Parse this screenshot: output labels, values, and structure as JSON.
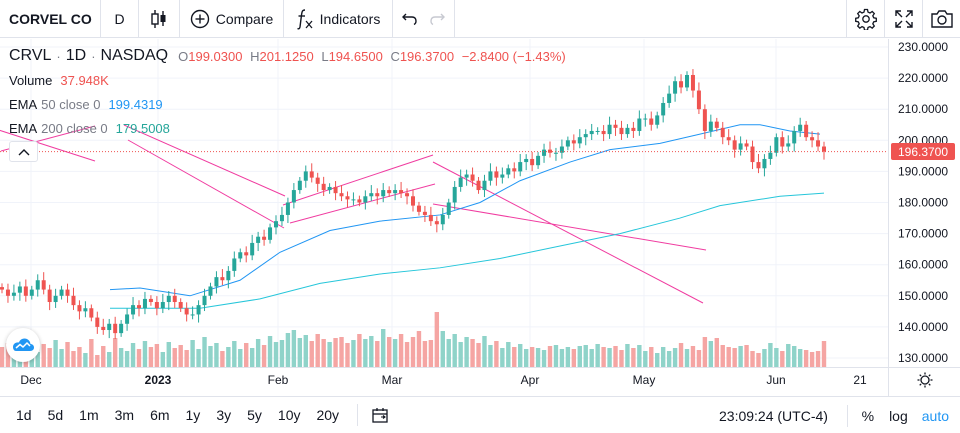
{
  "toolbar": {
    "symbol": "CORVEL CO",
    "interval": "D",
    "compare_label": "Compare",
    "indicators_label": "Indicators",
    "icons": [
      "candles-icon",
      "plus-circle-icon",
      "fx-icon",
      "undo-icon",
      "redo-icon",
      "gear-icon",
      "fullscreen-icon",
      "camera-icon"
    ]
  },
  "legend": {
    "ticker": "CRVL",
    "interval": "1D",
    "exchange": "NASDAQ",
    "open_label": "O",
    "open": "199.0300",
    "high_label": "H",
    "high": "201.1250",
    "low_label": "L",
    "low": "194.6500",
    "close_label": "C",
    "close": "196.3700",
    "change": "−2.8400 (−1.43%)",
    "volume_name": "Volume",
    "volume_value": "37.948K",
    "ema50_name": "EMA",
    "ema50_params": "50 close 0",
    "ema50_value": "199.4319",
    "ema200_name": "EMA",
    "ema200_params": "200 close 0",
    "ema200_value": "179.5008"
  },
  "price_tag": "196.3700",
  "colors": {
    "up": "#26a69a",
    "down": "#ef5350",
    "vol_up": "#8fd3c9",
    "vol_down": "#f5a5a3",
    "ema50": "#2196f3",
    "ema200": "#26c6da",
    "trendline": "#f03ca0"
  },
  "chart_data": {
    "type": "candlestick",
    "price_axis": [
      "230.0000",
      "220.0000",
      "210.0000",
      "200.0000",
      "190.0000",
      "180.0000",
      "170.0000",
      "160.0000",
      "150.0000",
      "140.0000",
      "130.0000"
    ],
    "ylim": [
      127,
      233
    ],
    "time_axis": [
      {
        "label": "Dec",
        "bold": false
      },
      {
        "label": "2023",
        "bold": true
      },
      {
        "label": "Feb",
        "bold": false
      },
      {
        "label": "Mar",
        "bold": false
      },
      {
        "label": "Apr",
        "bold": false
      },
      {
        "label": "May",
        "bold": false
      },
      {
        "label": "Jun",
        "bold": false
      },
      {
        "label": "21",
        "bold": false
      }
    ],
    "last_price": 196.37,
    "candle_closes": [
      152,
      150,
      151,
      153,
      150,
      152,
      155,
      152,
      148,
      150,
      152,
      150,
      147,
      145,
      146,
      143,
      140,
      139,
      141,
      138,
      141,
      144,
      147,
      146,
      149,
      148,
      146,
      148,
      150,
      148,
      146,
      144,
      144,
      147,
      150,
      153,
      156,
      155,
      158,
      162,
      164,
      163,
      167,
      169,
      168,
      172,
      174,
      176,
      180,
      184,
      187,
      190,
      188,
      186,
      184,
      185,
      183,
      182,
      181,
      181,
      180,
      182,
      183,
      182,
      184,
      183,
      184,
      183,
      182,
      179,
      177,
      176,
      174,
      173,
      176,
      180,
      185,
      188,
      189,
      187,
      184,
      187,
      190,
      188,
      189,
      191,
      190,
      193,
      194,
      192,
      195,
      197,
      196,
      196,
      198,
      200,
      199,
      201,
      202,
      203,
      203,
      202,
      205,
      204,
      202,
      204,
      203,
      207,
      207,
      205,
      208,
      212,
      215,
      219,
      217,
      221,
      216,
      210,
      203,
      206,
      204,
      201,
      200,
      197,
      199,
      198,
      193,
      191,
      194,
      196,
      201,
      198,
      199,
      203,
      205,
      201,
      200,
      198,
      196.37
    ],
    "ema50": [
      [
        110,
        152
      ],
      [
        140,
        152.5
      ],
      [
        190,
        150
      ],
      [
        240,
        155
      ],
      [
        280,
        164
      ],
      [
        330,
        171
      ],
      [
        380,
        174
      ],
      [
        440,
        176
      ],
      [
        480,
        180
      ],
      [
        520,
        187
      ],
      [
        570,
        193
      ],
      [
        610,
        197
      ],
      [
        660,
        199
      ],
      [
        700,
        202
      ],
      [
        740,
        205
      ],
      [
        760,
        205
      ],
      [
        790,
        203
      ],
      [
        820,
        202
      ]
    ],
    "ema200": [
      [
        110,
        146
      ],
      [
        200,
        146
      ],
      [
        260,
        149
      ],
      [
        320,
        154
      ],
      [
        380,
        157
      ],
      [
        440,
        159
      ],
      [
        500,
        162
      ],
      [
        560,
        166
      ],
      [
        620,
        170
      ],
      [
        680,
        175
      ],
      [
        720,
        179
      ],
      [
        780,
        182
      ],
      [
        824,
        183
      ]
    ],
    "volume": [
      20,
      24,
      17,
      26,
      18,
      22,
      15,
      23,
      19,
      27,
      18,
      25,
      16,
      20,
      14,
      28,
      12,
      21,
      15,
      29,
      19,
      16,
      24,
      18,
      26,
      20,
      23,
      15,
      25,
      19,
      22,
      17,
      27,
      18,
      30,
      21,
      24,
      16,
      20,
      26,
      18,
      24,
      19,
      28,
      22,
      31,
      25,
      27,
      34,
      37,
      29,
      32,
      26,
      33,
      28,
      25,
      29,
      30,
      24,
      27,
      33,
      28,
      31,
      26,
      38,
      30,
      28,
      33,
      25,
      30,
      36,
      26,
      27,
      55,
      36,
      28,
      33,
      25,
      30,
      28,
      24,
      31,
      22,
      26,
      19,
      25,
      20,
      23,
      18,
      20,
      19,
      17,
      21,
      22,
      18,
      20,
      18,
      21,
      22,
      18,
      23,
      20,
      19,
      21,
      17,
      23,
      19,
      22,
      16,
      20,
      14,
      20,
      16,
      19,
      24,
      18,
      21,
      17,
      30,
      26,
      29,
      22,
      20,
      19,
      21,
      22,
      16,
      14,
      18,
      24,
      19,
      16,
      23,
      21,
      18,
      17,
      15,
      16,
      26
    ],
    "trendlines": [
      [
        [
          -20,
          124
        ],
        [
          95,
          161
        ]
      ],
      [
        [
          1,
          151
        ],
        [
          95,
          126
        ]
      ],
      [
        [
          124,
          125
        ],
        [
          285,
          196
        ]
      ],
      [
        [
          128,
          140
        ],
        [
          284,
          228
        ]
      ],
      [
        [
          283,
          205
        ],
        [
          433,
          155
        ]
      ],
      [
        [
          290,
          223
        ],
        [
          435,
          184
        ]
      ],
      [
        [
          433,
          162
        ],
        [
          703,
          303
        ]
      ],
      [
        [
          433,
          204
        ],
        [
          706,
          250
        ]
      ]
    ]
  }
}
